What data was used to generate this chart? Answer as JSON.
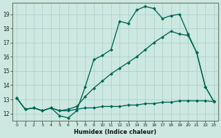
{
  "xlabel": "Humidex (Indice chaleur)",
  "background_color": "#cce8e0",
  "grid_color": "#a8cfc8",
  "line_color": "#006655",
  "xlim": [
    -0.5,
    23.5
  ],
  "ylim": [
    11.5,
    19.8
  ],
  "yticks": [
    12,
    13,
    14,
    15,
    16,
    17,
    18,
    19
  ],
  "xticks": [
    0,
    1,
    2,
    3,
    4,
    5,
    6,
    7,
    8,
    9,
    10,
    11,
    12,
    13,
    14,
    15,
    16,
    17,
    18,
    19,
    20,
    21,
    22,
    23
  ],
  "series": [
    {
      "x": [
        0,
        1,
        2,
        3,
        4,
        5,
        6,
        7,
        8,
        9,
        10,
        11,
        12,
        13,
        14,
        15,
        16,
        17,
        18,
        19,
        20,
        21,
        22,
        23
      ],
      "y": [
        13.1,
        12.3,
        12.4,
        12.2,
        12.4,
        12.2,
        12.2,
        12.3,
        12.4,
        12.4,
        12.5,
        12.5,
        12.5,
        12.6,
        12.6,
        12.7,
        12.7,
        12.8,
        12.8,
        12.9,
        12.9,
        12.9,
        12.9,
        12.85
      ]
    },
    {
      "x": [
        0,
        1,
        2,
        3,
        4,
        5,
        6,
        7,
        8,
        9,
        10,
        11,
        12,
        13,
        14,
        15,
        16,
        17,
        18,
        19,
        20,
        21,
        22,
        23
      ],
      "y": [
        13.1,
        12.3,
        12.4,
        12.2,
        12.4,
        12.2,
        12.3,
        12.5,
        13.2,
        13.8,
        14.3,
        14.8,
        15.2,
        15.6,
        16.0,
        16.5,
        17.0,
        17.4,
        17.8,
        17.6,
        17.5,
        16.3,
        13.9,
        12.85
      ]
    },
    {
      "x": [
        0,
        1,
        2,
        3,
        4,
        5,
        6,
        7,
        8,
        9,
        10,
        11,
        12,
        13,
        14,
        15,
        16,
        17,
        18,
        19,
        20,
        21,
        22,
        23
      ],
      "y": [
        13.1,
        12.3,
        12.4,
        12.2,
        12.4,
        11.85,
        11.7,
        12.2,
        13.9,
        15.8,
        16.1,
        16.5,
        18.5,
        18.35,
        19.3,
        19.55,
        19.4,
        18.7,
        18.9,
        19.0,
        17.6,
        16.3,
        13.9,
        12.85
      ]
    }
  ],
  "lw": 1.0,
  "marker": "D",
  "ms": 2.0
}
